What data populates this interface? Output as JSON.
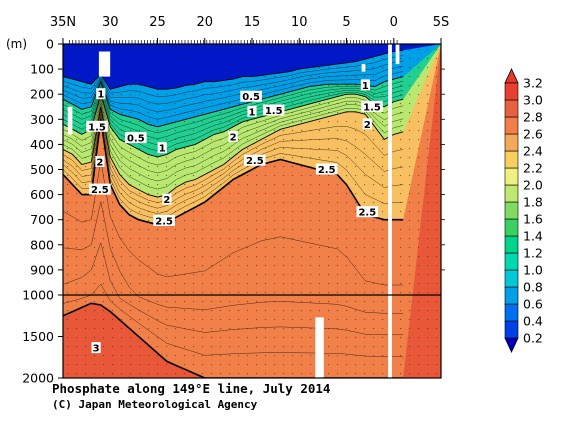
{
  "chart_data": {
    "type": "heatmap",
    "title": "Phosphate along 149°E line, July 2014",
    "credit": "(C) Japan Meteorological Agency",
    "depth_unit_label": "(m)",
    "x_tick_labels": [
      "35N",
      "30",
      "25",
      "20",
      "15",
      "10",
      "5",
      "0",
      "5S"
    ],
    "x_tick_values_lat": [
      35,
      30,
      25,
      20,
      15,
      10,
      5,
      0,
      -5
    ],
    "y_tick_labels_upper": [
      "0",
      "100",
      "200",
      "300",
      "400",
      "500",
      "600",
      "700",
      "800",
      "900",
      "1000"
    ],
    "y_tick_values_upper": [
      0,
      100,
      200,
      300,
      400,
      500,
      600,
      700,
      800,
      900,
      1000
    ],
    "y_tick_labels_lower": [
      "1500",
      "2000"
    ],
    "y_tick_values_lower": [
      1500,
      2000
    ],
    "colorbar": {
      "levels": [
        0.2,
        0.4,
        0.6,
        0.8,
        1.0,
        1.2,
        1.4,
        1.6,
        1.8,
        2.0,
        2.2,
        2.4,
        2.6,
        2.8,
        3.0,
        3.2
      ],
      "labels": [
        "0.2",
        "0.4",
        "0.6",
        "0.8",
        "1.0",
        "1.2",
        "1.4",
        "1.6",
        "1.8",
        "2.0",
        "2.2",
        "2.4",
        "2.6",
        "2.8",
        "3.0",
        "3.2"
      ],
      "colors": [
        "#0018c8",
        "#0040e8",
        "#0070f0",
        "#00a0e8",
        "#00c8d8",
        "#00d8b0",
        "#00d488",
        "#38d060",
        "#80dc60",
        "#c0e870",
        "#f0f080",
        "#f8d060",
        "#f4a858",
        "#f08048",
        "#e86040",
        "#e84030"
      ],
      "extend_low_color": "#0000c0",
      "extend_high_color": "#e83828"
    },
    "contour_labels": [
      {
        "text": "1",
        "lat": 31.0,
        "depth": 200
      },
      {
        "text": "1.5",
        "lat": 31.4,
        "depth": 330
      },
      {
        "text": "2",
        "lat": 31.1,
        "depth": 470
      },
      {
        "text": "2.5",
        "lat": 31.1,
        "depth": 580
      },
      {
        "text": "0.5",
        "lat": 27.3,
        "depth": 375
      },
      {
        "text": "1",
        "lat": 24.5,
        "depth": 415
      },
      {
        "text": "2",
        "lat": 24.0,
        "depth": 620
      },
      {
        "text": "2.5",
        "lat": 24.3,
        "depth": 705
      },
      {
        "text": "0.5",
        "lat": 15.1,
        "depth": 210
      },
      {
        "text": "1",
        "lat": 15.0,
        "depth": 270
      },
      {
        "text": "1.5",
        "lat": 12.7,
        "depth": 265
      },
      {
        "text": "2",
        "lat": 17.0,
        "depth": 370
      },
      {
        "text": "2.5",
        "lat": 14.7,
        "depth": 465
      },
      {
        "text": "2.5",
        "lat": 7.1,
        "depth": 500
      },
      {
        "text": "2.5",
        "lat": 2.8,
        "depth": 670
      },
      {
        "text": "1",
        "lat": 3.0,
        "depth": 165
      },
      {
        "text": "1.5",
        "lat": 2.3,
        "depth": 250
      },
      {
        "text": "2",
        "lat": 2.8,
        "depth": 320
      },
      {
        "text": "3",
        "lat": 31.5,
        "depth": 1640
      }
    ],
    "contour_level_depth_profiles": {
      "lat": [
        35,
        34,
        33,
        32,
        31,
        30,
        29,
        28,
        27,
        26,
        25,
        24,
        23,
        22,
        21,
        20,
        19,
        18,
        17,
        16,
        15,
        14,
        13,
        12,
        11,
        10,
        9,
        8,
        7,
        6,
        5,
        4,
        3,
        2,
        1,
        0,
        -1
      ],
      "0.5": [
        130,
        140,
        150,
        160,
        120,
        180,
        170,
        160,
        160,
        170,
        180,
        180,
        175,
        165,
        160,
        150,
        150,
        145,
        140,
        130,
        130,
        125,
        120,
        115,
        110,
        100,
        95,
        90,
        85,
        80,
        75,
        70,
        60,
        50,
        40,
        30,
        25
      ],
      "1.0": [
        220,
        240,
        260,
        250,
        150,
        260,
        280,
        290,
        300,
        320,
        330,
        320,
        310,
        300,
        290,
        280,
        270,
        260,
        250,
        240,
        230,
        220,
        210,
        200,
        190,
        180,
        170,
        165,
        160,
        160,
        160,
        160,
        165,
        170,
        150,
        140,
        130
      ],
      "1.5": [
        320,
        340,
        360,
        340,
        200,
        330,
        380,
        400,
        420,
        440,
        450,
        440,
        420,
        410,
        400,
        380,
        360,
        350,
        330,
        310,
        300,
        290,
        280,
        270,
        260,
        250,
        240,
        230,
        220,
        210,
        200,
        200,
        210,
        240,
        250,
        230,
        220
      ],
      "2.0": [
        420,
        440,
        480,
        470,
        250,
        450,
        520,
        560,
        580,
        600,
        610,
        600,
        570,
        550,
        540,
        520,
        500,
        480,
        450,
        420,
        400,
        380,
        360,
        340,
        330,
        320,
        310,
        300,
        290,
        280,
        270,
        270,
        280,
        330,
        380,
        360,
        350
      ],
      "2.5": [
        520,
        560,
        600,
        600,
        300,
        560,
        640,
        680,
        700,
        710,
        720,
        710,
        690,
        670,
        650,
        630,
        600,
        570,
        540,
        520,
        500,
        480,
        470,
        460,
        470,
        480,
        490,
        500,
        510,
        520,
        560,
        620,
        680,
        690,
        700,
        700,
        700
      ],
      "3.0": [
        1250,
        1200,
        1150,
        1100,
        1120,
        1200,
        1300,
        1400,
        1500,
        1600,
        1700,
        1800,
        1850,
        1900,
        1950,
        2000,
        2000,
        2000,
        2000,
        2000,
        2000,
        2000,
        2000,
        2000,
        2000,
        2000,
        2000,
        2000,
        2000,
        2000,
        2000,
        2000,
        2000,
        2000,
        2000,
        2000,
        2000
      ]
    },
    "no_data_regions": [
      {
        "lat_from": 31.2,
        "lat_to": 30.0,
        "depth_from": 30,
        "depth_to": 130
      },
      {
        "lat_from": 34.5,
        "lat_to": 34.0,
        "depth_from": 250,
        "depth_to": 360
      },
      {
        "lat_from": 3.4,
        "lat_to": 3.0,
        "depth_from": 80,
        "depth_to": 110
      },
      {
        "lat_from": 0.6,
        "lat_to": 0.2,
        "depth_from": 0,
        "depth_to": 2000
      },
      {
        "lat_from": 8.3,
        "lat_to": 7.4,
        "depth_from": 1270,
        "depth_to": 2000
      },
      {
        "lat_from": -0.2,
        "lat_to": -0.6,
        "depth_from": 0,
        "depth_to": 80
      }
    ],
    "x_range_lat": [
      35,
      -5
    ],
    "y_range_depth": [
      0,
      2000
    ],
    "y_scale": "piecewise: 0-1000 m linear (upper panel), 1000-2000 m compressed (lower panel)",
    "separator_depth": 1000,
    "grid": false,
    "legend": "colorbar-right"
  }
}
